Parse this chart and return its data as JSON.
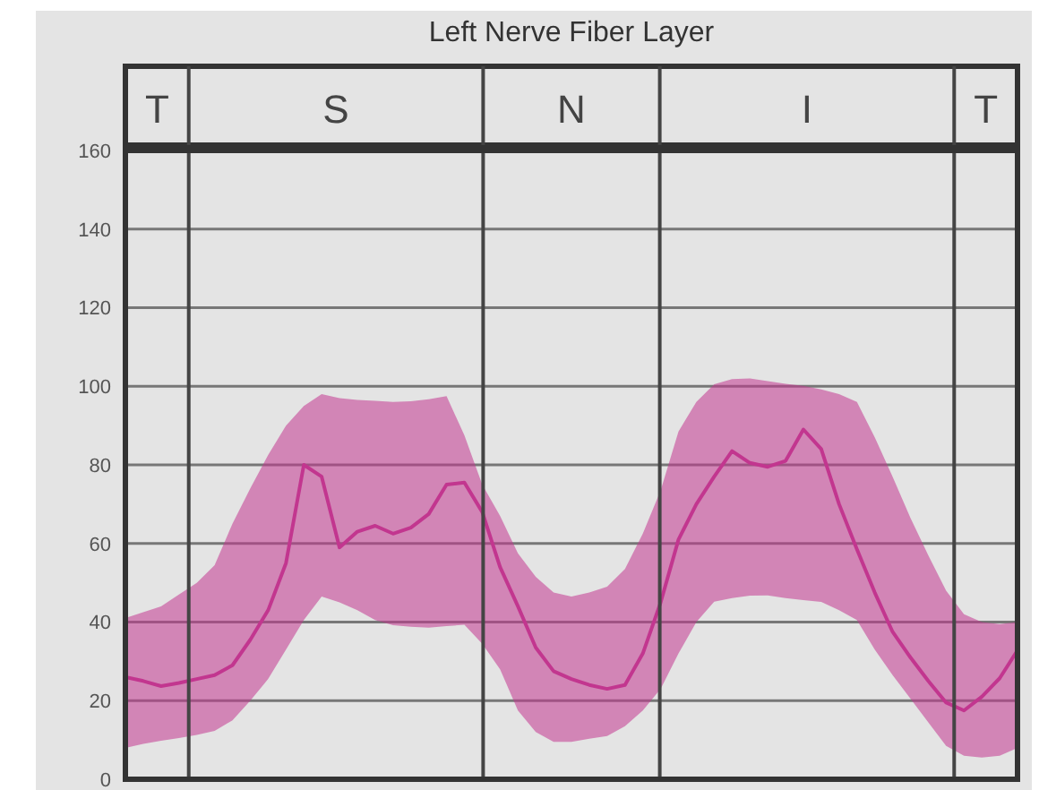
{
  "chart_data": {
    "type": "line",
    "title": "Left Nerve Fiber Layer",
    "categories": [
      null,
      null,
      null,
      null,
      null,
      null,
      null,
      null,
      null,
      null,
      null,
      null,
      null,
      null,
      null,
      null,
      null,
      null,
      null,
      null,
      null,
      null,
      null,
      null,
      null,
      null,
      null,
      null,
      null,
      null,
      null,
      null,
      null,
      null,
      null,
      null,
      null,
      null,
      null,
      null,
      null,
      null,
      null,
      null,
      null,
      null,
      null,
      null,
      null,
      null,
      null
    ],
    "series": [
      {
        "color": "#c2368f",
        "values": [
          26,
          25,
          23.7,
          24.5,
          25.5,
          26.5,
          29,
          35.5,
          43,
          55,
          80,
          77,
          59,
          63,
          64.5,
          62.5,
          64,
          67.5,
          75,
          75.5,
          68,
          54,
          44,
          33.5,
          27.5,
          25.5,
          24,
          23,
          24,
          32,
          45,
          61,
          70,
          77,
          83.5,
          80.5,
          79.5,
          81,
          89,
          84,
          70,
          58.5,
          47.5,
          37.5,
          31,
          25,
          19.5,
          17.5,
          21,
          25.7,
          32.8
        ],
        "lower": [
          8,
          9,
          9.8,
          10.5,
          11.3,
          12.3,
          15,
          20,
          25.5,
          33,
          40.5,
          46.5,
          45,
          43,
          40.5,
          39.2,
          38.8,
          38.6,
          39,
          39.3,
          34.5,
          28,
          17.5,
          12,
          9.5,
          9.5,
          10.3,
          11,
          13.5,
          17.5,
          23,
          32,
          40,
          45.2,
          46.1,
          46.7,
          46.8,
          46.1,
          45.6,
          45.1,
          43,
          40.5,
          33,
          26.5,
          20.5,
          14.5,
          8.5,
          6,
          5.5,
          6,
          8
        ],
        "upper": [
          41,
          42.5,
          44,
          47,
          50,
          54.5,
          65,
          74,
          82.5,
          90,
          95,
          98,
          97,
          96.5,
          96.3,
          96,
          96.2,
          96.7,
          97.5,
          87.5,
          75,
          67,
          57.5,
          51.5,
          47.5,
          46.5,
          47.5,
          49,
          53.5,
          62.5,
          73.5,
          88.5,
          96,
          100.5,
          101.8,
          102,
          101.3,
          100.6,
          100.1,
          99.2,
          98,
          96,
          87,
          77,
          66.5,
          57,
          48,
          42,
          40,
          39.5,
          40
        ]
      }
    ],
    "ylim": [
      0,
      160
    ],
    "yticks": [
      0,
      20,
      40,
      60,
      80,
      100,
      120,
      140,
      160
    ],
    "tick_labels": "y",
    "grid": "y",
    "marker": "none",
    "line_style": "solid",
    "annotations": [
      "T",
      "S",
      "N",
      "I",
      "T"
    ]
  }
}
